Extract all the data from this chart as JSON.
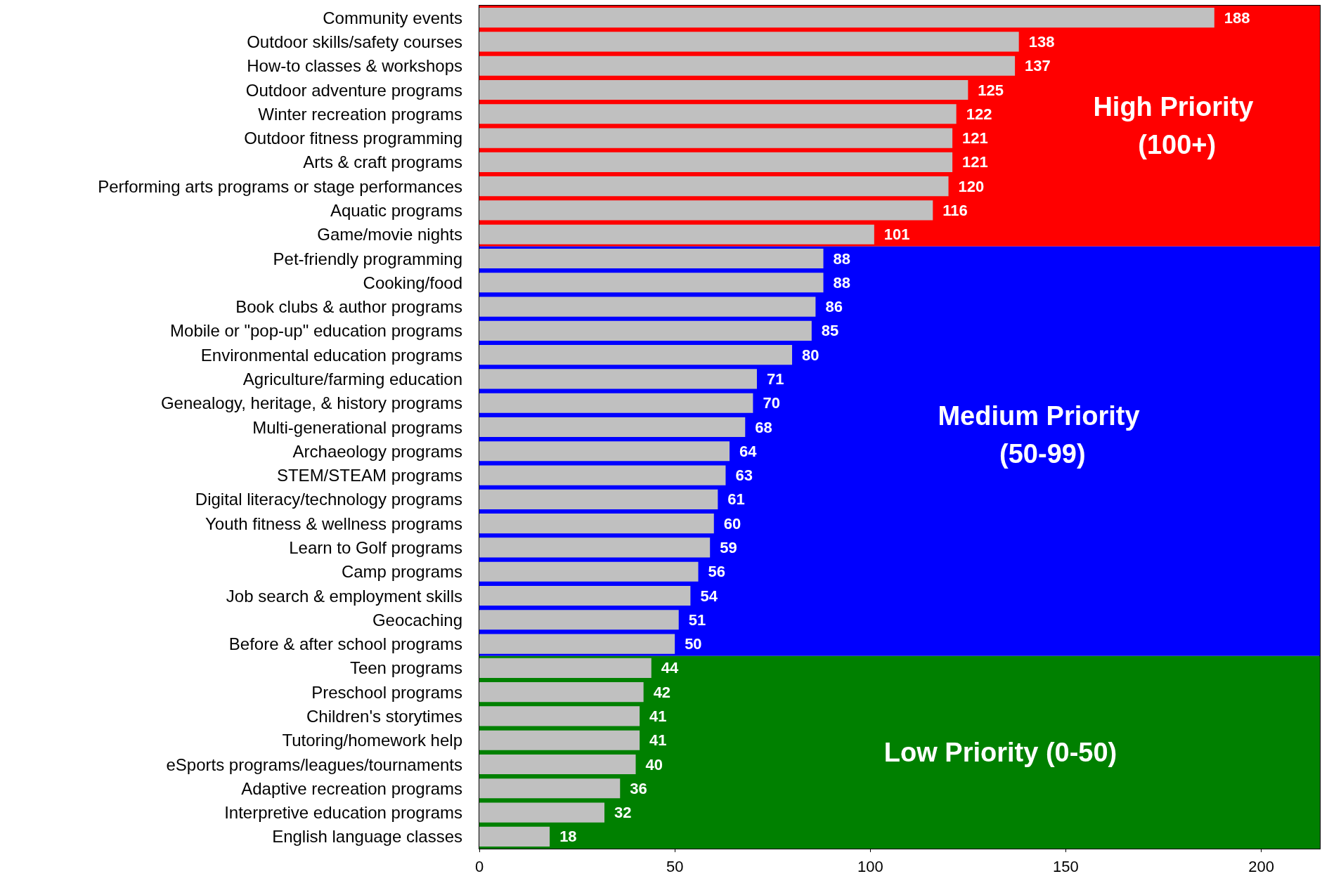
{
  "chart_data": {
    "type": "bar",
    "orientation": "horizontal",
    "categories": [
      "Community events",
      "Outdoor skills/safety courses",
      "How-to classes & workshops",
      "Outdoor adventure programs",
      "Winter recreation programs",
      "Outdoor fitness programming",
      "Arts & craft programs",
      "Performing arts programs or stage performances",
      "Aquatic programs",
      "Game/movie nights",
      "Pet-friendly programming",
      "Cooking/food",
      "Book clubs & author programs",
      "Mobile or \"pop-up\" education programs",
      "Environmental education programs",
      "Agriculture/farming education",
      "Genealogy, heritage, & history programs",
      "Multi-generational programs",
      "Archaeology programs",
      "STEM/STEAM programs",
      "Digital literacy/technology programs",
      "Youth fitness & wellness programs",
      "Learn to Golf programs",
      "Camp programs",
      "Job search & employment skills",
      "Geocaching",
      "Before & after school programs",
      "Teen programs",
      "Preschool programs",
      "Children's storytimes",
      "Tutoring/homework help",
      "eSports programs/leagues/tournaments",
      "Adaptive recreation programs",
      "Interpretive education programs",
      "English language classes"
    ],
    "values": [
      188,
      138,
      137,
      125,
      122,
      121,
      121,
      120,
      116,
      101,
      88,
      88,
      86,
      85,
      80,
      71,
      70,
      68,
      64,
      63,
      61,
      60,
      59,
      56,
      54,
      51,
      50,
      44,
      42,
      41,
      41,
      40,
      36,
      32,
      18
    ],
    "color": "#c0c0c0",
    "data_labels": true,
    "xlim": [
      0,
      215
    ],
    "xticks": [
      0,
      50,
      100,
      150,
      200
    ],
    "grid": false,
    "bands": [
      {
        "axis": "y",
        "from": "Community events",
        "to": "Game/movie nights",
        "label": "High Priority (100+)",
        "color": "#ff0000"
      },
      {
        "axis": "y",
        "from": "Pet-friendly programming",
        "to": "Before & after school programs",
        "label": "Medium Priority (50-99)",
        "color": "#0000ff"
      },
      {
        "axis": "y",
        "from": "Teen programs",
        "to": "English language classes",
        "label": "Low Priority (0-50)",
        "color": "#008000"
      }
    ]
  }
}
